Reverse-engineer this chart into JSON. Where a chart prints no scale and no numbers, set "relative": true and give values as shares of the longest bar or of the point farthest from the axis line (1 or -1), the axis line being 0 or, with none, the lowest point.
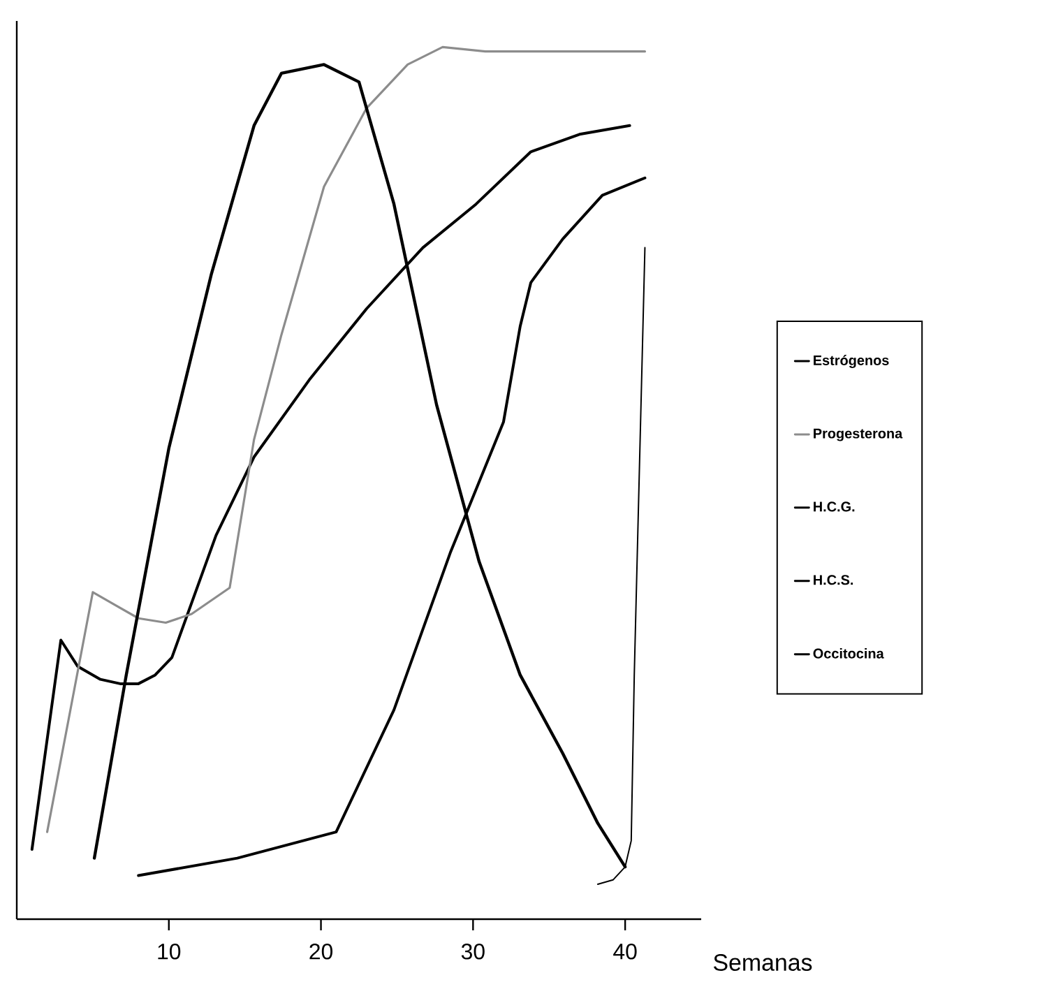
{
  "chart_data": {
    "type": "line",
    "relative": true,
    "xlabel": "Semanas",
    "xlim": [
      0,
      45
    ],
    "xticks": [
      10,
      20,
      30,
      40
    ],
    "legend": "right",
    "grid": false,
    "marker": "none",
    "line_style": "solid",
    "series": [
      {
        "name": "Estrógenos",
        "color": "#000000",
        "x": [
          1.0,
          2.9,
          4.0,
          5.5,
          6.8,
          8.0,
          9.1,
          10.2,
          13.1,
          15.6,
          19.3,
          23.0,
          26.7,
          30.2,
          33.8,
          37.0,
          40.3
        ],
        "values": [
          0.08,
          0.32,
          0.29,
          0.275,
          0.27,
          0.27,
          0.28,
          0.3,
          0.44,
          0.53,
          0.62,
          0.7,
          0.77,
          0.82,
          0.88,
          0.9,
          0.91
        ]
      },
      {
        "name": "Progesterona",
        "color": "#8c8c8c",
        "x": [
          2.0,
          5.0,
          6.5,
          8.0,
          9.8,
          11.5,
          14.0,
          15.6,
          17.4,
          20.2,
          23.0,
          25.7,
          28.0,
          30.8,
          35.0,
          41.3
        ],
        "values": [
          0.1,
          0.375,
          0.36,
          0.345,
          0.34,
          0.35,
          0.38,
          0.55,
          0.67,
          0.84,
          0.93,
          0.98,
          1.0,
          0.995,
          0.995,
          0.995
        ]
      },
      {
        "name": "H.C.G.",
        "color": "#000000",
        "x": [
          5.1,
          7.2,
          10.0,
          12.8,
          15.6,
          17.4,
          20.2,
          22.5,
          24.8,
          27.6,
          30.4,
          33.1,
          35.9,
          38.2,
          40.0
        ],
        "values": [
          0.07,
          0.28,
          0.54,
          0.74,
          0.91,
          0.97,
          0.98,
          0.96,
          0.82,
          0.59,
          0.41,
          0.28,
          0.19,
          0.11,
          0.06
        ]
      },
      {
        "name": "H.C.S.",
        "color": "#000000",
        "x": [
          8.0,
          14.5,
          21.0,
          24.8,
          28.5,
          32.0,
          33.1,
          33.8,
          35.9,
          38.5,
          41.3
        ],
        "values": [
          0.05,
          0.07,
          0.1,
          0.24,
          0.42,
          0.57,
          0.68,
          0.73,
          0.78,
          0.83,
          0.85
        ]
      },
      {
        "name": "Occitocina",
        "color": "#000000",
        "x": [
          38.2,
          39.2,
          40.0,
          40.4,
          40.6,
          41.3
        ],
        "values": [
          0.04,
          0.045,
          0.06,
          0.09,
          0.28,
          0.77
        ]
      }
    ]
  }
}
